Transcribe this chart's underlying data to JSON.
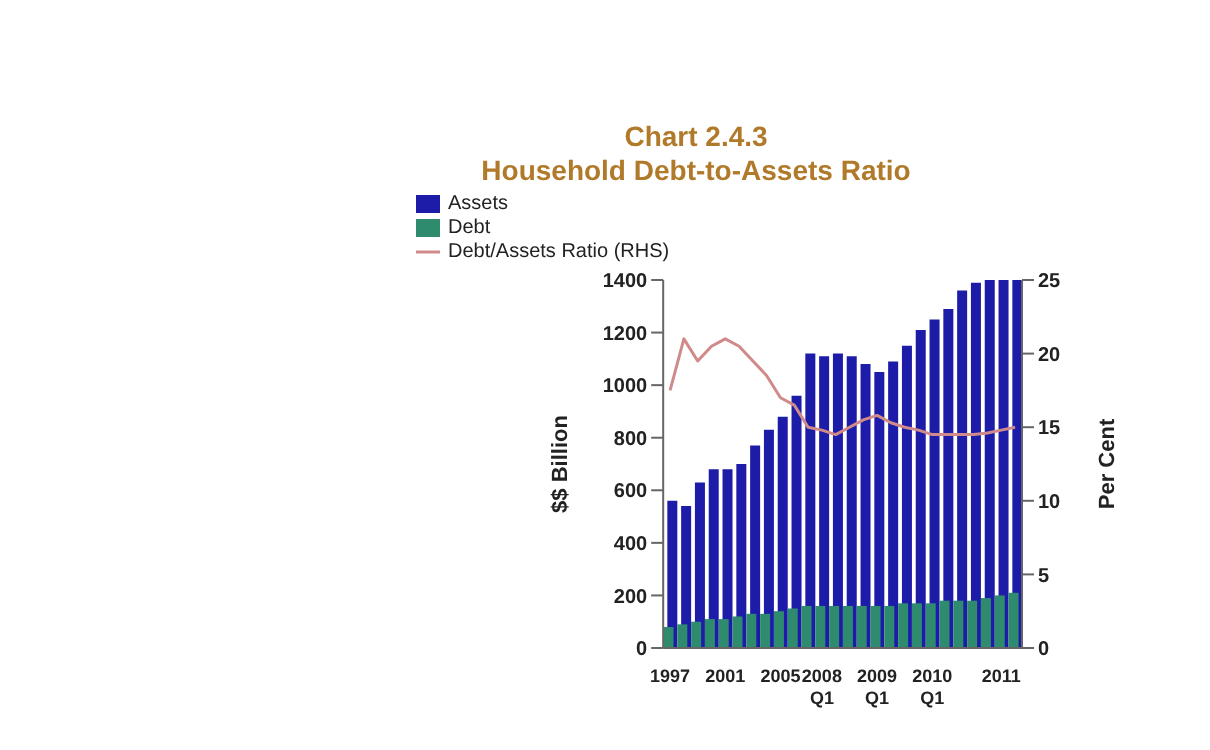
{
  "chart_data": {
    "type": "bar",
    "title": "Chart 2.4.3",
    "subtitle": "Household Debt-to-Assets Ratio",
    "ylabel": "$$ Billion",
    "y2label": "Per Cent",
    "categories": [
      "1997",
      null,
      null,
      null,
      "2001",
      null,
      null,
      null,
      "2005",
      null,
      null,
      "2008 Q1",
      null,
      null,
      null,
      "2009 Q1",
      null,
      null,
      null,
      "2010 Q1",
      null,
      null,
      null,
      null,
      "2011",
      null
    ],
    "series": [
      {
        "name": "Assets",
        "color": "#1c1ca8",
        "values": [
          560,
          540,
          630,
          680,
          680,
          700,
          770,
          830,
          880,
          960,
          1120,
          1110,
          1120,
          1110,
          1080,
          1050,
          1090,
          1150,
          1210,
          1250,
          1290,
          1360,
          1390,
          1400,
          1400,
          1400
        ]
      },
      {
        "name": "Debt",
        "color": "#2e8b6e",
        "values": [
          80,
          90,
          100,
          110,
          110,
          120,
          130,
          130,
          140,
          150,
          160,
          160,
          160,
          160,
          160,
          160,
          160,
          170,
          170,
          170,
          180,
          180,
          180,
          190,
          200,
          210
        ]
      },
      {
        "name": "Debt/Assets Ratio (RHS)",
        "type": "line",
        "axis": "y2",
        "color": "#d08a8a",
        "values": [
          17.5,
          21,
          19.5,
          20.5,
          21,
          20.5,
          19.5,
          18.5,
          17,
          16.5,
          15,
          14.8,
          14.5,
          15,
          15.5,
          15.8,
          15.3,
          15,
          14.8,
          14.5,
          14.5,
          14.5,
          14.5,
          14.6,
          14.8,
          15
        ]
      }
    ],
    "ylim": [
      0,
      1400
    ],
    "yticks": [
      0,
      200,
      400,
      600,
      800,
      1000,
      1200,
      1400
    ],
    "y2lim": [
      0,
      25
    ],
    "y2ticks": [
      0,
      5,
      10,
      15,
      20,
      25
    ],
    "legend": "top left",
    "marker": "none",
    "line_style": "solid"
  }
}
